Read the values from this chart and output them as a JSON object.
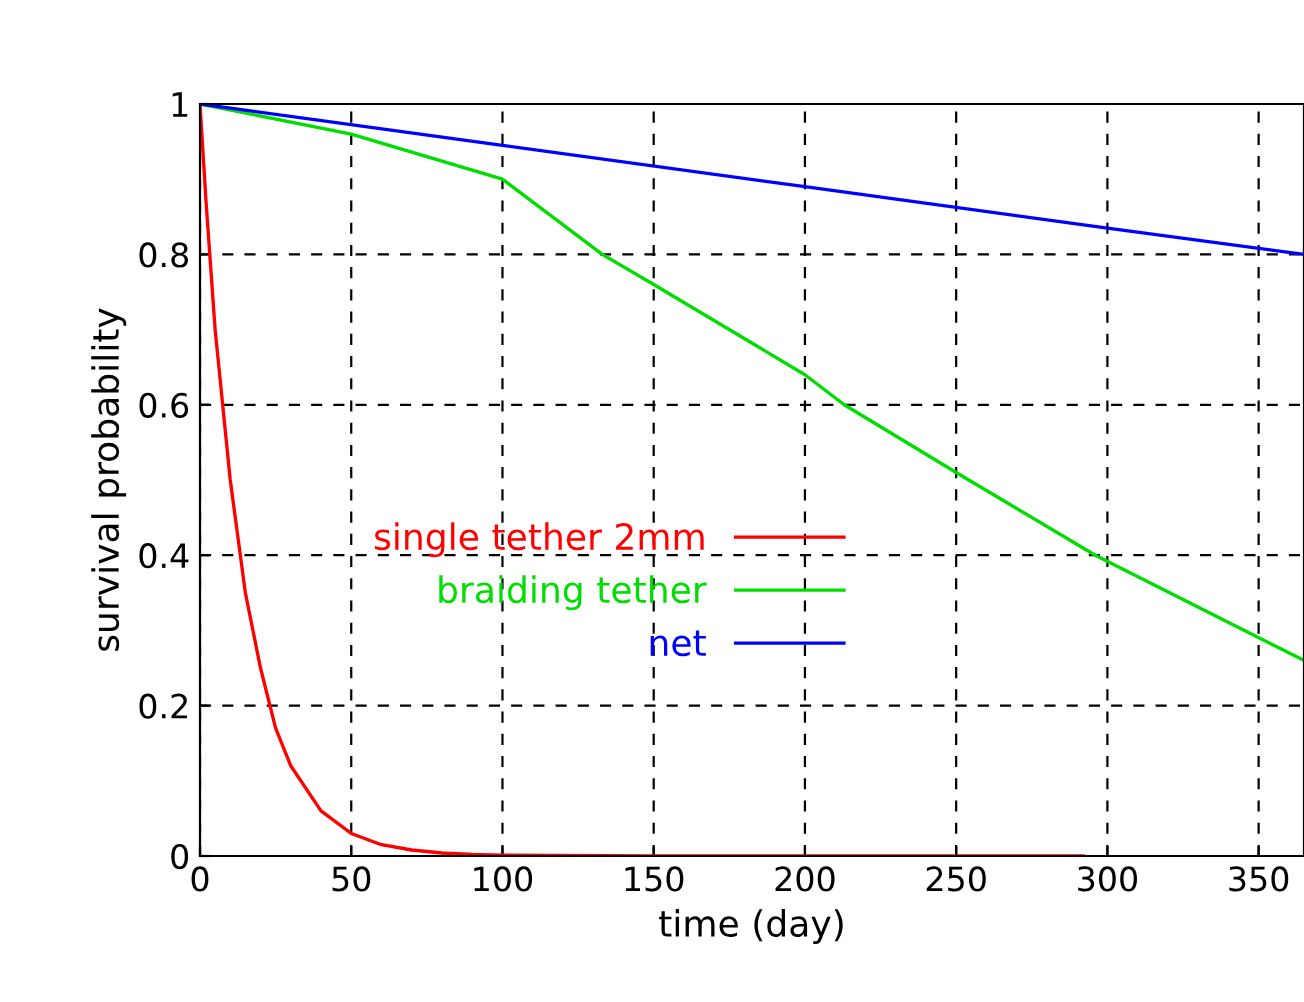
{
  "chart_data": {
    "type": "line",
    "xlabel": "time (day)",
    "ylabel": "survival probability",
    "xlim": [
      0,
      365
    ],
    "ylim": [
      0,
      1
    ],
    "xticks": [
      0,
      50,
      100,
      150,
      200,
      250,
      300,
      350
    ],
    "yticks": [
      0,
      0.2,
      0.4,
      0.6,
      0.8,
      1
    ],
    "grid": true,
    "legend": "center",
    "marker": "none",
    "line_style": "solid",
    "series": [
      {
        "name": "single tether 2mm",
        "color": "#ff0000",
        "x": [
          0,
          2,
          5,
          10,
          15,
          20,
          25,
          30,
          40,
          50,
          60,
          70,
          80,
          90,
          100,
          150,
          292
        ],
        "values": [
          1,
          0.87,
          0.7,
          0.5,
          0.35,
          0.25,
          0.17,
          0.12,
          0.06,
          0.03,
          0.015,
          0.008,
          0.004,
          0.002,
          0.001,
          0,
          0
        ]
      },
      {
        "name": "braiding tether",
        "color": "#00dd00",
        "x": [
          0,
          50,
          100,
          133,
          150,
          200,
          213,
          250,
          296,
          365
        ],
        "values": [
          1,
          0.96,
          0.9,
          0.8,
          0.76,
          0.64,
          0.6,
          0.51,
          0.4,
          0.26
        ]
      },
      {
        "name": "net",
        "color": "#0000ff",
        "x": [
          0,
          100,
          200,
          300,
          365
        ],
        "values": [
          1,
          0.945,
          0.89,
          0.835,
          0.8
        ]
      }
    ]
  }
}
